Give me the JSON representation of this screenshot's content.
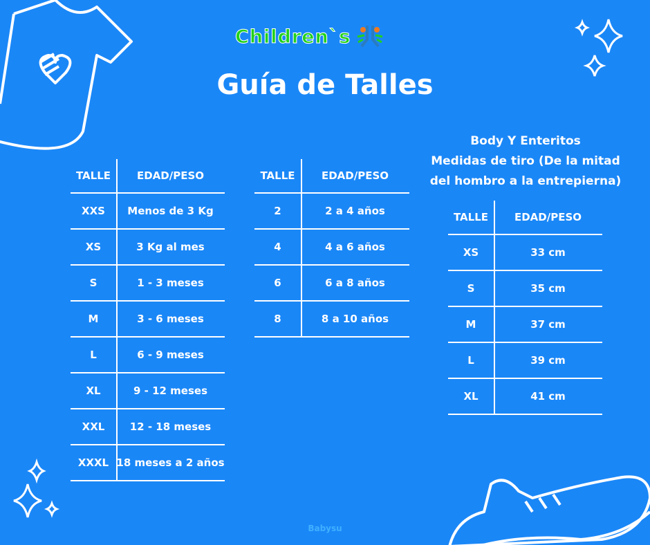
{
  "logo": {
    "text": "Children`s"
  },
  "title": "Guía de Talles",
  "headers": {
    "talle": "TALLE",
    "edad": "EDAD/PESO"
  },
  "table_babies": [
    [
      "XXS",
      "Menos de 3 Kg"
    ],
    [
      "XS",
      "3 Kg al mes"
    ],
    [
      "S",
      "1 - 3 meses"
    ],
    [
      "M",
      "3 - 6 meses"
    ],
    [
      "L",
      "6 - 9 meses"
    ],
    [
      "XL",
      "9 - 12 meses"
    ],
    [
      "XXL",
      "12 - 18 meses"
    ],
    [
      "XXXL",
      "18 meses a 2 años"
    ]
  ],
  "table_kids": [
    [
      "2",
      "2 a 4 años"
    ],
    [
      "4",
      "4 a 6 años"
    ],
    [
      "6",
      "6 a 8 años"
    ],
    [
      "8",
      "8 a 10 años"
    ]
  ],
  "body_section": {
    "lines": [
      "Body Y Enteritos",
      "Medidas de tiro (De la mitad",
      "del hombro a la entrepierna)"
    ]
  },
  "table_body": [
    [
      "XS",
      "33 cm"
    ],
    [
      "S",
      "35 cm"
    ],
    [
      "M",
      "37 cm"
    ],
    [
      "L",
      "39 cm"
    ],
    [
      "XL",
      "41 cm"
    ]
  ],
  "footer": "Babysu",
  "colors": {
    "background": "#1a87f7",
    "logo_green": "#22d11c"
  }
}
